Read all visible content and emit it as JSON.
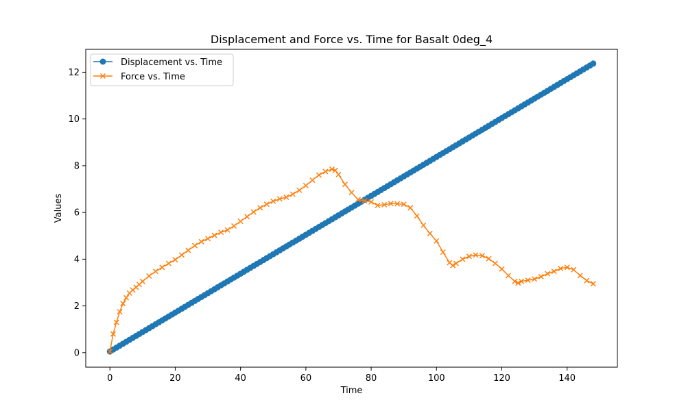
{
  "chart_data": {
    "type": "line",
    "title": "Displacement and Force vs. Time for Basalt 0deg_4",
    "xlabel": "Time",
    "ylabel": "Values",
    "xlim": [
      -7.4,
      155.4
    ],
    "ylim": [
      -0.62,
      12.98
    ],
    "xticks": [
      0,
      20,
      40,
      60,
      80,
      100,
      120,
      140
    ],
    "yticks": [
      0,
      2,
      4,
      6,
      8,
      10,
      12
    ],
    "legend_position": "top-left",
    "series": [
      {
        "name": "Displacement vs. Time",
        "color": "#1f77b4",
        "marker": "circle",
        "linear": {
          "x_start": 0,
          "x_end": 148,
          "step": 1,
          "y_start": 0.05,
          "y_end": 12.37
        }
      },
      {
        "name": "Force vs. Time",
        "color": "#ff7f0e",
        "marker": "x",
        "points": [
          [
            0,
            0.05
          ],
          [
            1,
            0.8
          ],
          [
            2,
            1.3
          ],
          [
            3,
            1.75
          ],
          [
            4,
            2.1
          ],
          [
            5,
            2.35
          ],
          [
            6,
            2.55
          ],
          [
            7,
            2.68
          ],
          [
            8,
            2.8
          ],
          [
            9,
            2.92
          ],
          [
            10,
            3.05
          ],
          [
            12,
            3.28
          ],
          [
            14,
            3.48
          ],
          [
            16,
            3.65
          ],
          [
            18,
            3.82
          ],
          [
            20,
            3.98
          ],
          [
            22,
            4.18
          ],
          [
            24,
            4.38
          ],
          [
            26,
            4.58
          ],
          [
            28,
            4.75
          ],
          [
            30,
            4.88
          ],
          [
            32,
            5.02
          ],
          [
            34,
            5.15
          ],
          [
            36,
            5.25
          ],
          [
            38,
            5.42
          ],
          [
            40,
            5.62
          ],
          [
            42,
            5.82
          ],
          [
            44,
            6.02
          ],
          [
            46,
            6.2
          ],
          [
            48,
            6.35
          ],
          [
            50,
            6.48
          ],
          [
            52,
            6.58
          ],
          [
            54,
            6.65
          ],
          [
            56,
            6.78
          ],
          [
            58,
            6.95
          ],
          [
            60,
            7.15
          ],
          [
            62,
            7.38
          ],
          [
            64,
            7.6
          ],
          [
            66,
            7.75
          ],
          [
            68,
            7.85
          ],
          [
            69,
            7.8
          ],
          [
            70,
            7.62
          ],
          [
            72,
            7.2
          ],
          [
            74,
            6.85
          ],
          [
            76,
            6.55
          ],
          [
            78,
            6.5
          ],
          [
            80,
            6.45
          ],
          [
            82,
            6.3
          ],
          [
            84,
            6.33
          ],
          [
            86,
            6.38
          ],
          [
            88,
            6.37
          ],
          [
            90,
            6.35
          ],
          [
            92,
            6.2
          ],
          [
            94,
            5.85
          ],
          [
            96,
            5.45
          ],
          [
            98,
            5.1
          ],
          [
            100,
            4.78
          ],
          [
            102,
            4.3
          ],
          [
            104,
            3.85
          ],
          [
            105,
            3.73
          ],
          [
            106,
            3.82
          ],
          [
            108,
            4.0
          ],
          [
            110,
            4.12
          ],
          [
            112,
            4.18
          ],
          [
            114,
            4.15
          ],
          [
            116,
            4.02
          ],
          [
            118,
            3.82
          ],
          [
            120,
            3.58
          ],
          [
            122,
            3.3
          ],
          [
            124,
            3.05
          ],
          [
            125,
            2.98
          ],
          [
            126,
            3.05
          ],
          [
            128,
            3.1
          ],
          [
            130,
            3.15
          ],
          [
            132,
            3.25
          ],
          [
            134,
            3.38
          ],
          [
            136,
            3.48
          ],
          [
            138,
            3.6
          ],
          [
            140,
            3.65
          ],
          [
            142,
            3.55
          ],
          [
            144,
            3.3
          ],
          [
            146,
            3.08
          ],
          [
            148,
            2.95
          ]
        ]
      }
    ]
  }
}
